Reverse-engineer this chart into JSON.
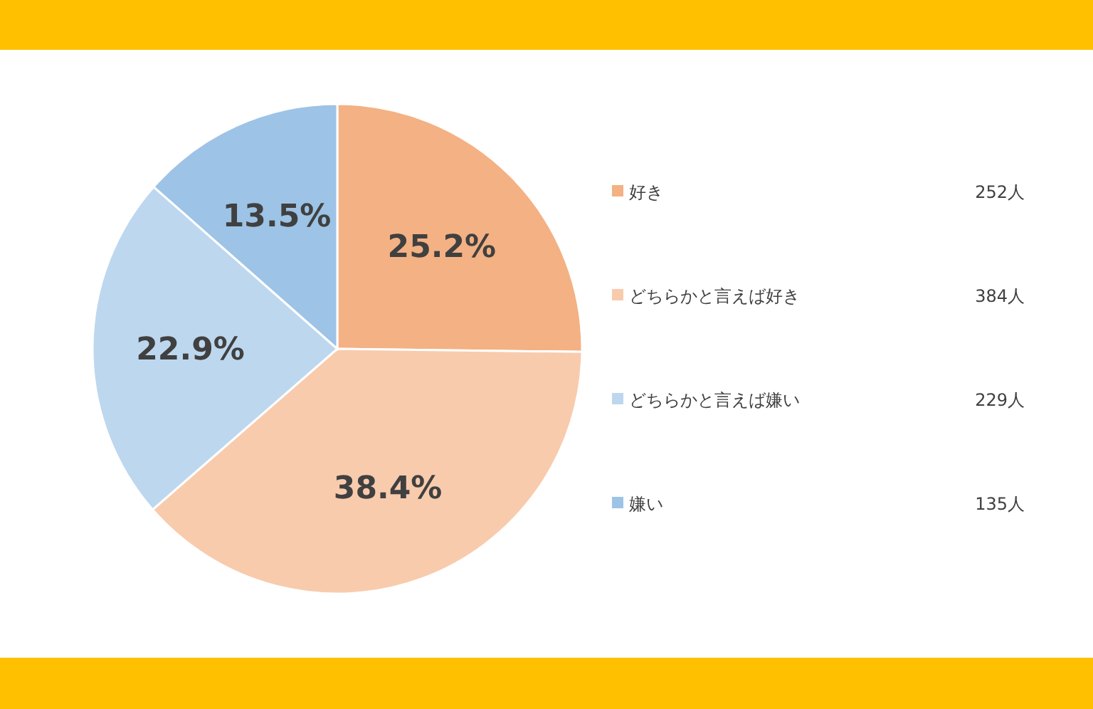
{
  "chart_data": {
    "type": "pie",
    "categories": [
      "好き",
      "どちらかと言えば好き",
      "どちらかと言えば嫌い",
      "嫌い"
    ],
    "values": [
      25.2,
      38.4,
      22.9,
      13.5
    ],
    "colors": [
      "#f4b183",
      "#f8cbad",
      "#bdd7ee",
      "#9dc3e6"
    ],
    "value_labels": [
      "25.2%",
      "38.4%",
      "22.9%",
      "13.5%"
    ],
    "legend": "right",
    "annotations": [
      "252人",
      "384人",
      "229人",
      "135人"
    ]
  }
}
